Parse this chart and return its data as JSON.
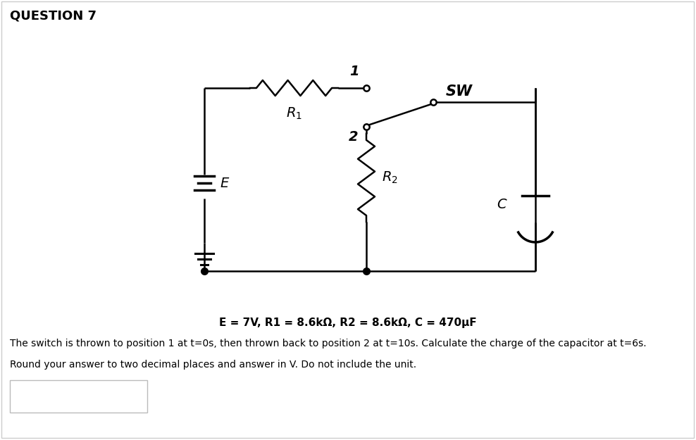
{
  "title": "QUESTION 7",
  "bg_color": "#ffffff",
  "circuit_color": "#000000",
  "bold_text": "E = 7V, R1 = 8.6kΩ, R2 = 8.6kΩ, C = 470μF",
  "desc_line1": "The switch is thrown to position 1 at t=0s, then thrown back to position 2 at t=10s. Calculate the charge of the capacitor at t=6s.",
  "desc_line2": "Round your answer to two decimal places and answer in V. Do not include the unit.",
  "label_R1": "$R_1$",
  "label_R2": "$R_2$",
  "label_E": "E",
  "label_C": "C",
  "label_SW": "SW",
  "label_1": "1",
  "label_2": "2"
}
